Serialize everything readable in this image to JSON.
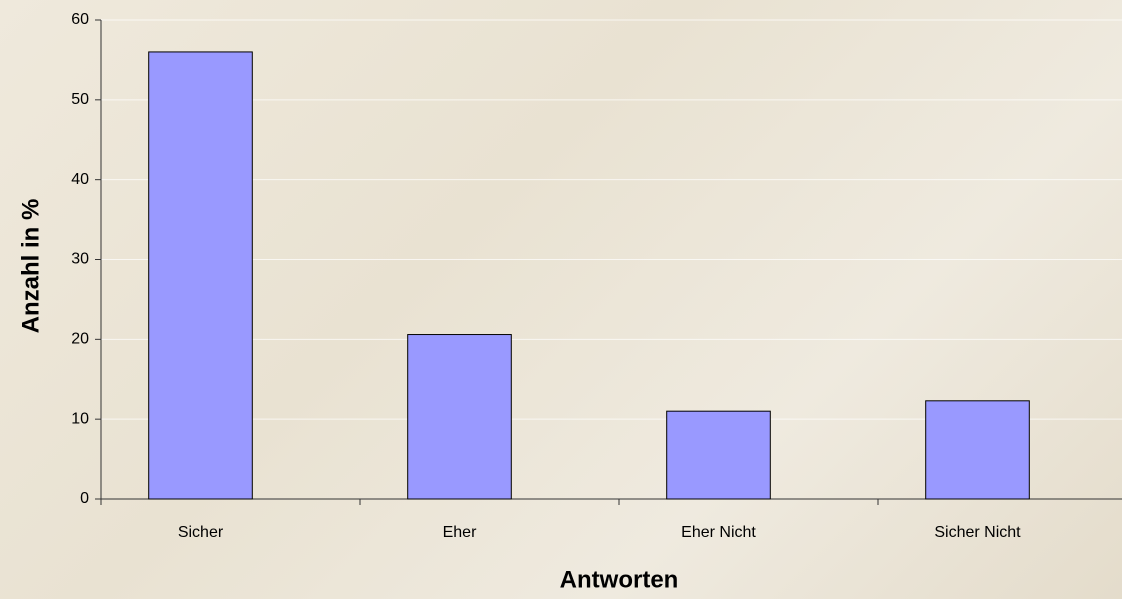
{
  "chart_data": {
    "type": "bar",
    "categories": [
      "Sicher",
      "Eher",
      "Eher Nicht",
      "Sicher Nicht"
    ],
    "values": [
      56,
      20.6,
      11,
      12.3
    ],
    "color": "#9999ff",
    "ylim": [
      0,
      60
    ],
    "yticks": [
      0,
      10,
      20,
      30,
      40,
      50,
      60
    ],
    "grid": true,
    "x_label": "Antworten",
    "y_label": "Anzahl in %"
  }
}
